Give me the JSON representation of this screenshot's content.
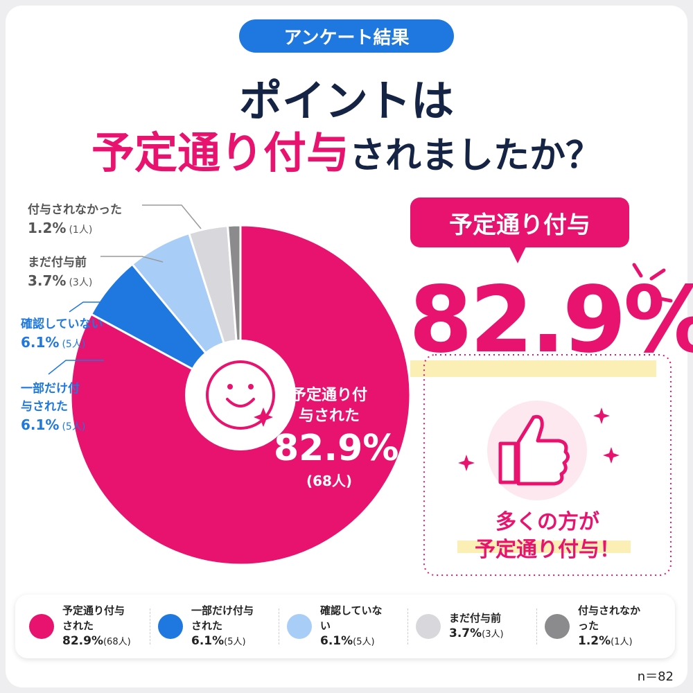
{
  "chart_data": {
    "type": "pie",
    "donut": true,
    "kicker": "アンケート結果",
    "title": [
      "ポイントは",
      "予定通り付与",
      "されましたか？"
    ],
    "categories": [
      "予定通り付与された",
      "一部だけ付与された",
      "確認していない",
      "まだ付与前",
      "付与されなかった"
    ],
    "values": [
      82.9,
      6.1,
      6.1,
      3.7,
      1.2
    ],
    "value_labels": [
      "82.9%",
      "6.1%",
      "6.1%",
      "3.7%",
      "1.2%"
    ],
    "count_labels": [
      "(68人)",
      "(5人)",
      "(5人)",
      "(3人)",
      "(1人)"
    ],
    "colors": [
      "#e8136f",
      "#1f78e0",
      "#a8cdf6",
      "#d8d8dc",
      "#8b8b8e"
    ],
    "annotations": {
      "callout": "予定通り付与",
      "message": [
        "多くの方が",
        "予定通り付与！"
      ],
      "n": "n＝82"
    }
  }
}
